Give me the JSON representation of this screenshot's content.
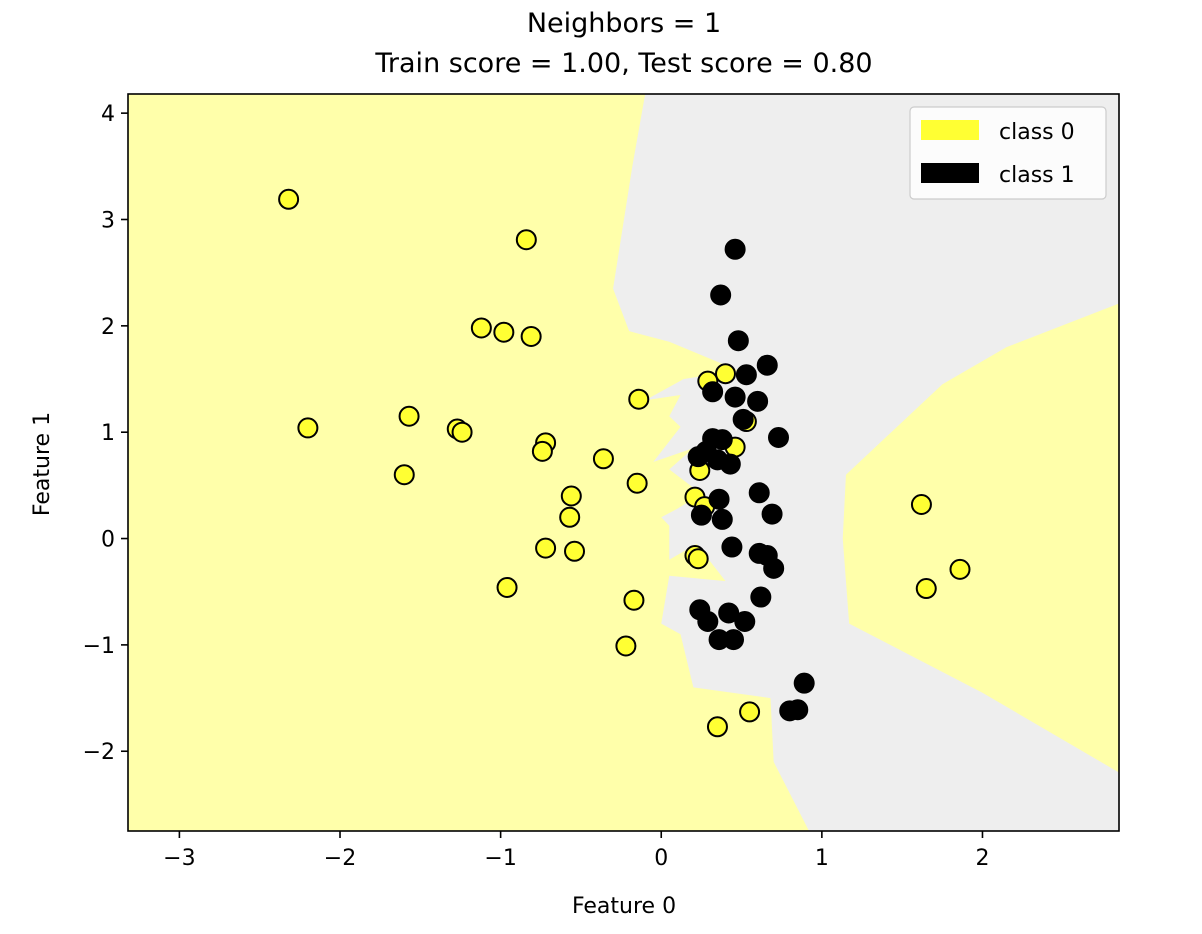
{
  "chart_data": {
    "type": "scatter",
    "title_line1": "Neighbors = 1",
    "title_line2": "Train score = 1.00, Test score = 0.80",
    "xlabel": "Feature 0",
    "ylabel": "Feature 1",
    "xlim": [
      -3.32,
      2.85
    ],
    "ylim": [
      -2.75,
      4.18
    ],
    "xticks": [
      -3,
      -2,
      -1,
      0,
      1,
      2
    ],
    "xtick_labels": [
      "−3",
      "−2",
      "−1",
      "0",
      "1",
      "2"
    ],
    "yticks": [
      -2,
      -1,
      0,
      1,
      2,
      3,
      4
    ],
    "ytick_labels": [
      "−2",
      "−1",
      "0",
      "1",
      "2",
      "3",
      "4"
    ],
    "grid": false,
    "legend_position": "top-right",
    "colors": {
      "class0_point": "#ffff33",
      "class1_point": "#000000",
      "class0_region": "#ffffaa",
      "class1_region": "#eeeeee"
    },
    "legend": [
      "class 0",
      "class 1"
    ],
    "series": [
      {
        "name": "class 0",
        "points": [
          [
            -2.32,
            3.19
          ],
          [
            -0.84,
            2.81
          ],
          [
            -1.12,
            1.98
          ],
          [
            -0.98,
            1.94
          ],
          [
            -0.81,
            1.9
          ],
          [
            -2.2,
            1.04
          ],
          [
            -1.57,
            1.15
          ],
          [
            -1.27,
            1.03
          ],
          [
            -1.24,
            1.0
          ],
          [
            -1.6,
            0.6
          ],
          [
            -0.72,
            0.9
          ],
          [
            -0.74,
            0.82
          ],
          [
            -0.36,
            0.75
          ],
          [
            -0.14,
            1.31
          ],
          [
            -0.15,
            0.52
          ],
          [
            -0.56,
            0.4
          ],
          [
            -0.57,
            0.2
          ],
          [
            -0.72,
            -0.09
          ],
          [
            -0.54,
            -0.12
          ],
          [
            -0.96,
            -0.46
          ],
          [
            -0.17,
            -0.58
          ],
          [
            -0.22,
            -1.01
          ],
          [
            0.29,
            1.48
          ],
          [
            0.4,
            1.55
          ],
          [
            0.53,
            1.1
          ],
          [
            0.46,
            0.86
          ],
          [
            0.24,
            0.64
          ],
          [
            0.21,
            0.39
          ],
          [
            0.27,
            0.3
          ],
          [
            0.21,
            -0.16
          ],
          [
            0.23,
            -0.19
          ],
          [
            0.35,
            -1.77
          ],
          [
            0.55,
            -1.63
          ],
          [
            1.62,
            0.32
          ],
          [
            1.65,
            -0.47
          ],
          [
            1.86,
            -0.29
          ]
        ]
      },
      {
        "name": "class 1",
        "points": [
          [
            0.46,
            2.72
          ],
          [
            0.37,
            2.29
          ],
          [
            0.48,
            1.86
          ],
          [
            0.66,
            1.63
          ],
          [
            0.53,
            1.54
          ],
          [
            0.32,
            1.38
          ],
          [
            0.46,
            1.33
          ],
          [
            0.6,
            1.29
          ],
          [
            0.51,
            1.12
          ],
          [
            0.73,
            0.95
          ],
          [
            0.32,
            0.94
          ],
          [
            0.38,
            0.93
          ],
          [
            0.28,
            0.82
          ],
          [
            0.23,
            0.77
          ],
          [
            0.35,
            0.74
          ],
          [
            0.43,
            0.7
          ],
          [
            0.61,
            0.43
          ],
          [
            0.36,
            0.37
          ],
          [
            0.69,
            0.23
          ],
          [
            0.25,
            0.22
          ],
          [
            0.38,
            0.18
          ],
          [
            0.44,
            -0.08
          ],
          [
            0.61,
            -0.14
          ],
          [
            0.66,
            -0.16
          ],
          [
            0.7,
            -0.28
          ],
          [
            0.62,
            -0.55
          ],
          [
            0.24,
            -0.67
          ],
          [
            0.42,
            -0.7
          ],
          [
            0.29,
            -0.78
          ],
          [
            0.52,
            -0.78
          ],
          [
            0.36,
            -0.95
          ],
          [
            0.45,
            -0.95
          ],
          [
            0.89,
            -1.36
          ],
          [
            0.8,
            -1.62
          ],
          [
            0.85,
            -1.61
          ]
        ]
      }
    ],
    "decision_regions": {
      "class1": [
        [
          -0.1,
          4.18
        ],
        [
          2.85,
          4.18
        ],
        [
          2.85,
          2.21
        ],
        [
          2.15,
          1.8
        ],
        [
          1.75,
          1.45
        ],
        [
          1.15,
          0.6
        ],
        [
          1.13,
          0.0
        ],
        [
          1.17,
          -0.8
        ],
        [
          2.0,
          -1.45
        ],
        [
          2.85,
          -2.2
        ],
        [
          2.85,
          -2.75
        ],
        [
          0.92,
          -2.75
        ],
        [
          0.7,
          -2.1
        ],
        [
          0.68,
          -1.5
        ],
        [
          0.2,
          -1.4
        ],
        [
          0.12,
          -0.9
        ],
        [
          0.0,
          -0.8
        ],
        [
          0.05,
          -0.35
        ],
        [
          0.4,
          -0.4
        ],
        [
          0.22,
          -0.05
        ],
        [
          0.05,
          -0.2
        ],
        [
          0.05,
          0.12
        ],
        [
          0.0,
          0.2
        ],
        [
          0.1,
          0.28
        ],
        [
          0.25,
          0.42
        ],
        [
          0.05,
          0.65
        ],
        [
          0.2,
          0.85
        ],
        [
          -0.05,
          0.72
        ],
        [
          0.12,
          1.05
        ],
        [
          0.05,
          1.15
        ],
        [
          0.12,
          1.35
        ],
        [
          -0.1,
          1.3
        ],
        [
          0.14,
          1.5
        ],
        [
          0.48,
          1.58
        ],
        [
          0.05,
          1.85
        ],
        [
          -0.2,
          1.95
        ],
        [
          -0.3,
          2.35
        ],
        [
          -0.18,
          3.5
        ]
      ]
    }
  }
}
